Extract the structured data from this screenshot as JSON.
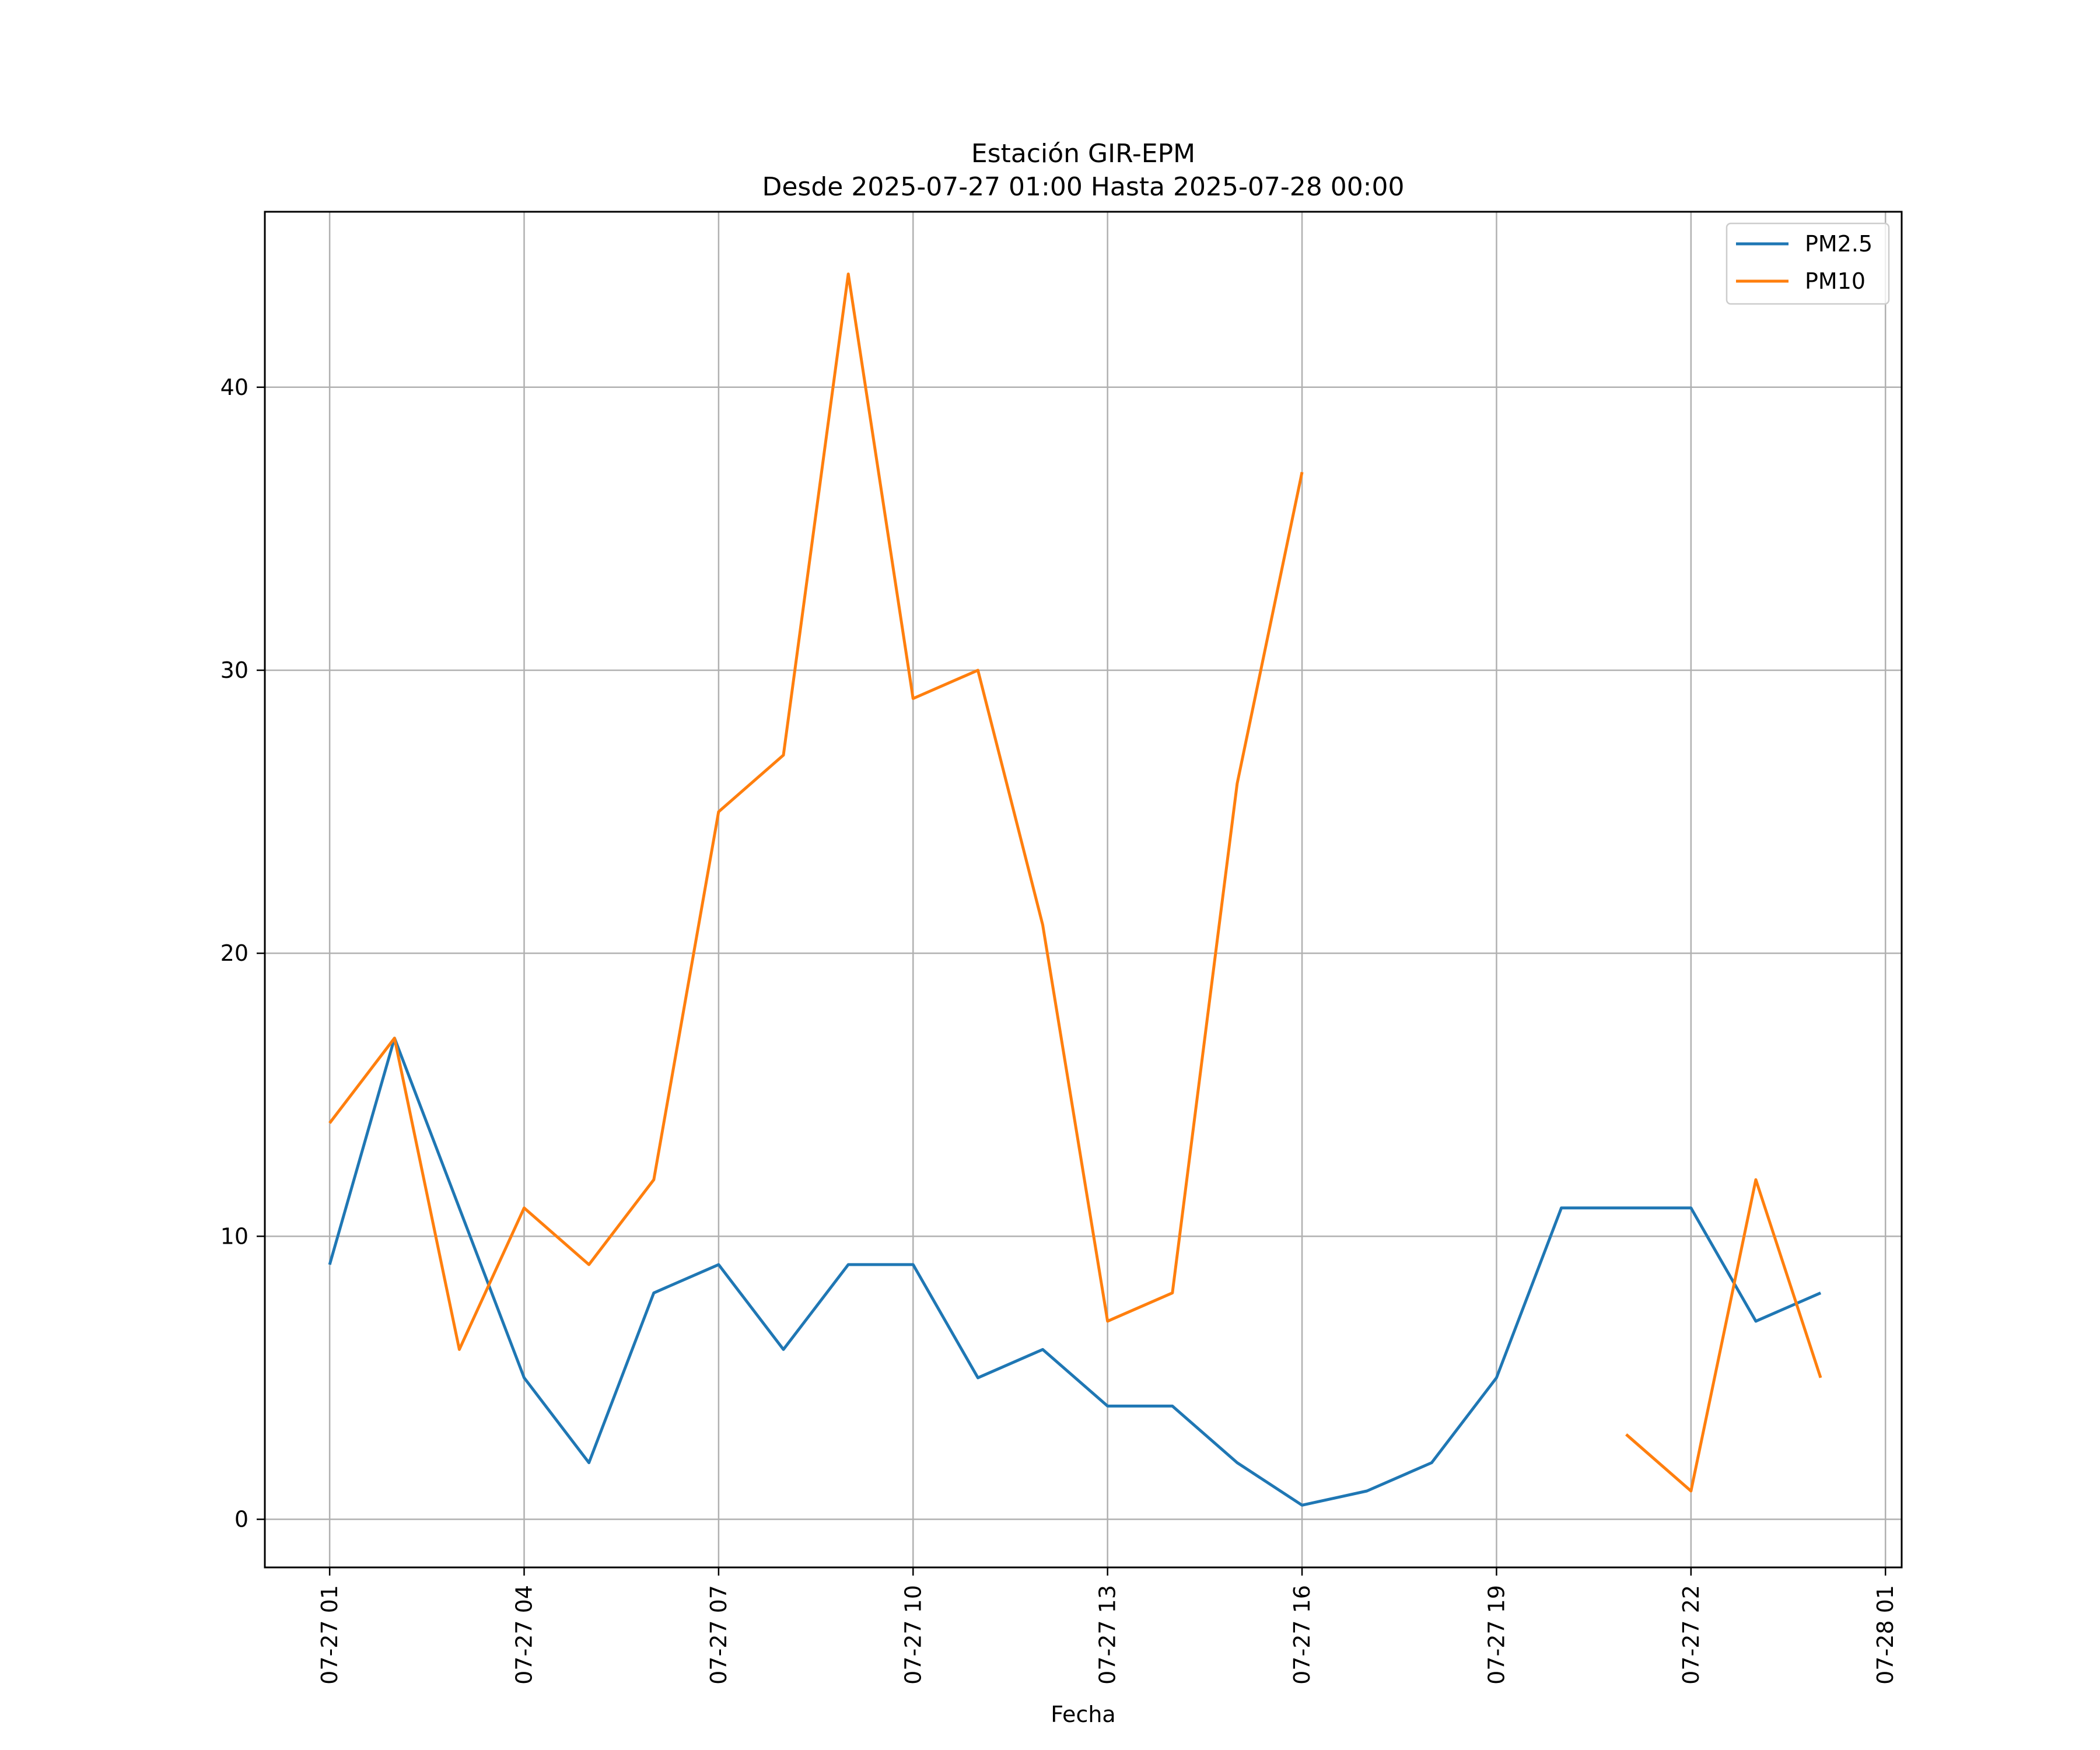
{
  "chart_data": {
    "type": "line",
    "title": "Estación GIR-EPM",
    "subtitle": "Desde 2025-07-27 01:00 Hasta 2025-07-28 00:00",
    "xlabel": "Fecha",
    "ylabel": "",
    "x": [
      "2025-07-27 01:00",
      "2025-07-27 02:00",
      "2025-07-27 03:00",
      "2025-07-27 04:00",
      "2025-07-27 05:00",
      "2025-07-27 06:00",
      "2025-07-27 07:00",
      "2025-07-27 08:00",
      "2025-07-27 09:00",
      "2025-07-27 10:00",
      "2025-07-27 11:00",
      "2025-07-27 12:00",
      "2025-07-27 13:00",
      "2025-07-27 14:00",
      "2025-07-27 15:00",
      "2025-07-27 16:00",
      "2025-07-27 17:00",
      "2025-07-27 18:00",
      "2025-07-27 19:00",
      "2025-07-27 20:00",
      "2025-07-27 21:00",
      "2025-07-27 22:00",
      "2025-07-27 23:00",
      "2025-07-28 00:00"
    ],
    "xlim": [
      "2025-07-27 00:00",
      "2025-07-28 01:15"
    ],
    "ylim": [
      -1.7,
      46.2
    ],
    "xticks": [
      "07-27 01",
      "07-27 04",
      "07-27 07",
      "07-27 10",
      "07-27 13",
      "07-27 16",
      "07-27 19",
      "07-27 22",
      "07-28 01"
    ],
    "yticks": [
      0,
      10,
      20,
      30,
      40
    ],
    "grid": true,
    "legend_position": "top-right",
    "series": [
      {
        "name": "PM2.5",
        "color": "#1f77b4",
        "values": [
          9,
          17,
          11,
          5,
          2,
          8,
          9,
          6,
          9,
          9,
          5,
          6,
          4,
          4,
          2,
          0.5,
          1,
          2,
          5,
          11,
          11,
          11,
          7,
          8
        ]
      },
      {
        "name": "PM10",
        "color": "#ff7f0e",
        "values": [
          14,
          17,
          6,
          11,
          9,
          12,
          25,
          27,
          44,
          29,
          30,
          21,
          7,
          8,
          26,
          37,
          null,
          null,
          null,
          null,
          3,
          1,
          12,
          5
        ]
      }
    ]
  }
}
